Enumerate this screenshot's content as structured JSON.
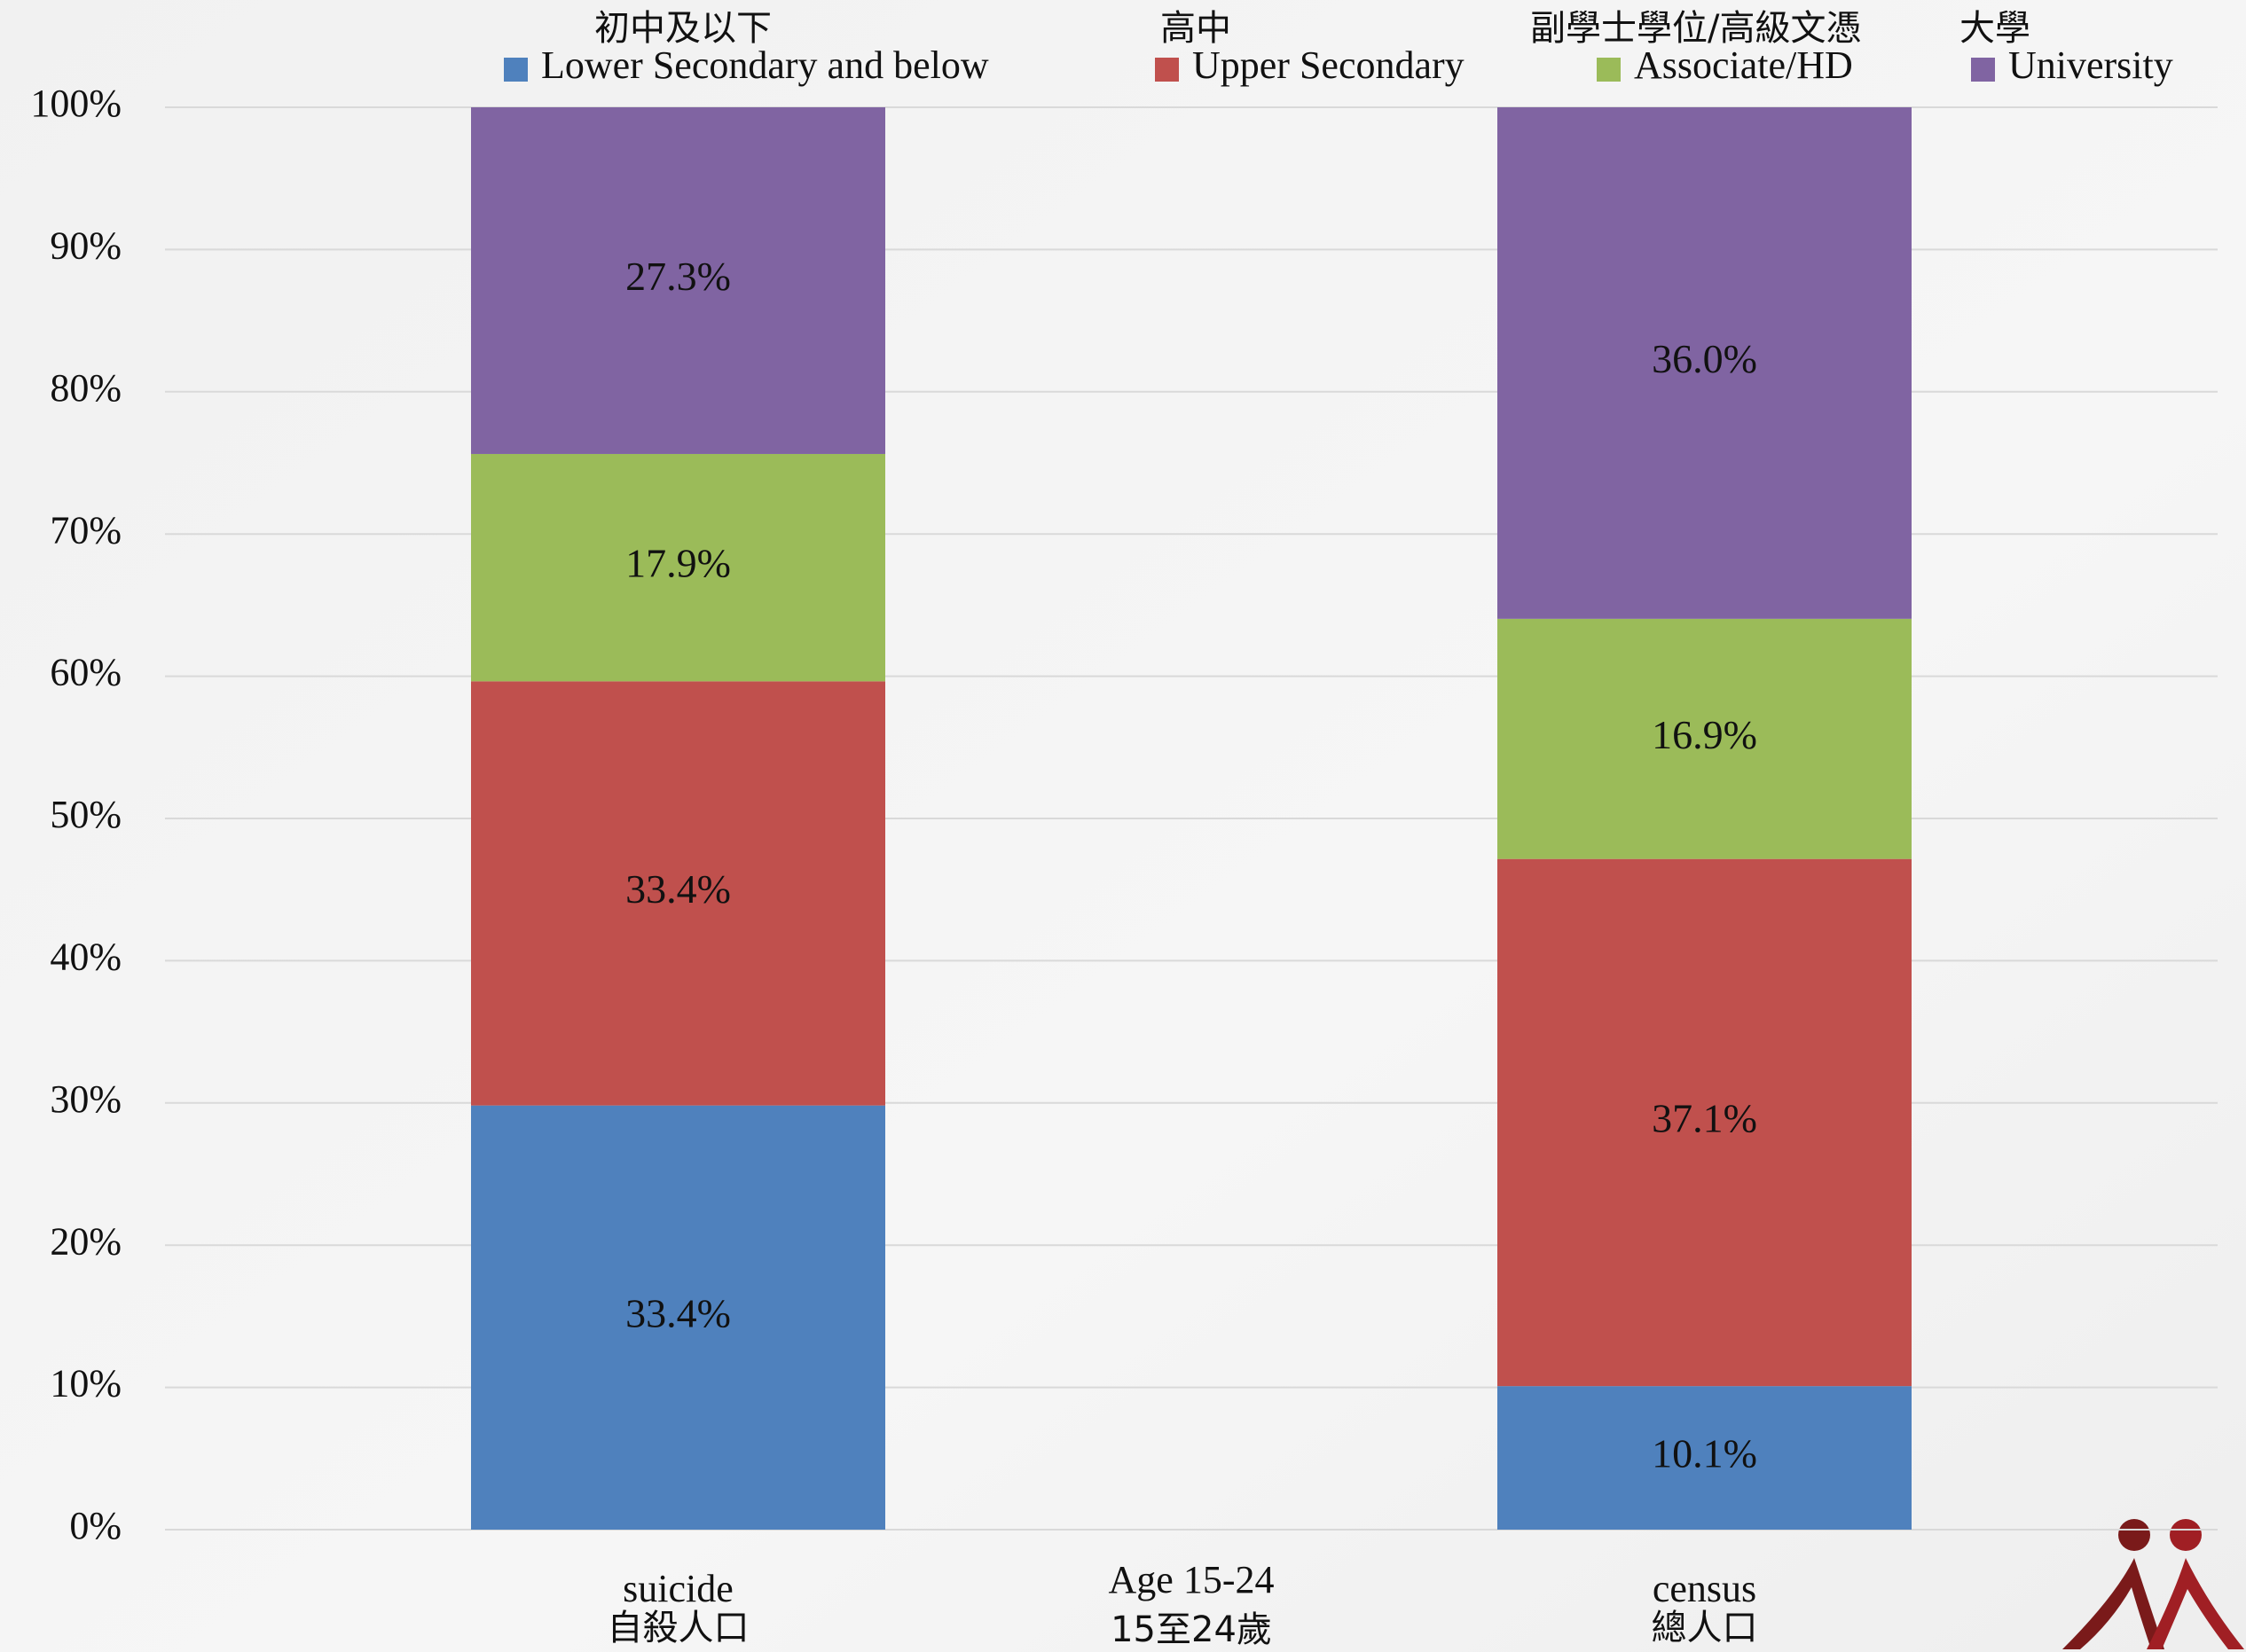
{
  "chart_data": {
    "type": "bar",
    "stack": "percent",
    "categories": [
      "suicide",
      "census"
    ],
    "categories_zh": [
      "自殺人口",
      "總人口"
    ],
    "xlabel": "Age 15-24",
    "xlabel_zh": "15至24歲",
    "series": [
      {
        "name": "Lower Secondary and below",
        "name_zh": "初中及以下",
        "color": "#4f81bd",
        "values": [
          33.4,
          10.1
        ],
        "value_labels": [
          "33.4%",
          "10.1%"
        ]
      },
      {
        "name": "Upper Secondary",
        "name_zh": "高中",
        "color": "#c0504d",
        "values": [
          33.4,
          37.1
        ],
        "value_labels": [
          "33.4%",
          "37.1%"
        ]
      },
      {
        "name": "Associate/HD",
        "name_zh": "副學士學位/高級文憑",
        "color": "#9bbb59",
        "values": [
          17.9,
          16.9
        ],
        "value_labels": [
          "17.9%",
          "16.9%"
        ]
      },
      {
        "name": "University",
        "name_zh": "大學",
        "color": "#8064a2",
        "values": [
          27.3,
          36.0
        ],
        "value_labels": [
          "27.3%",
          "36.0%"
        ]
      }
    ],
    "ylim": [
      0,
      100
    ],
    "yticks": [
      {
        "value": 0,
        "label": "0%"
      },
      {
        "value": 10,
        "label": "10%"
      },
      {
        "value": 20,
        "label": "20%"
      },
      {
        "value": 30,
        "label": "30%"
      },
      {
        "value": 40,
        "label": "40%"
      },
      {
        "value": 50,
        "label": "50%"
      },
      {
        "value": 60,
        "label": "60%"
      },
      {
        "value": 70,
        "label": "70%"
      },
      {
        "value": 80,
        "label": "80%"
      },
      {
        "value": 90,
        "label": "90%"
      },
      {
        "value": 100,
        "label": "100%"
      }
    ],
    "grid": true,
    "legend": "top"
  }
}
